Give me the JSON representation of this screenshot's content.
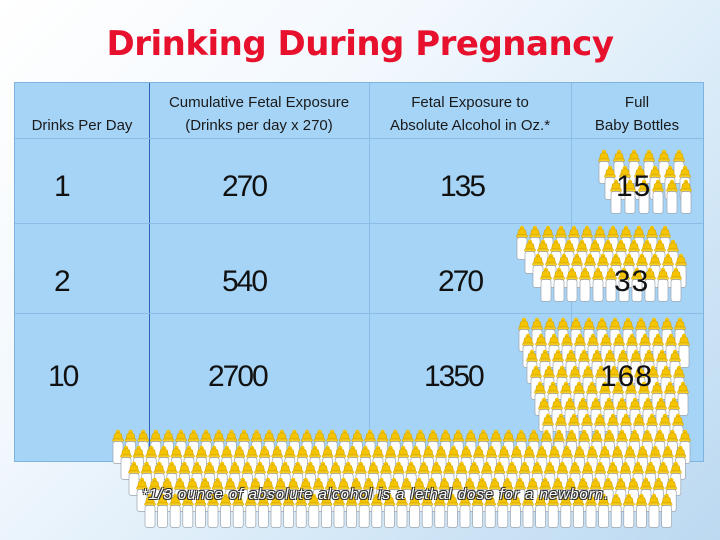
{
  "slide": {
    "title": "Drinking During Pregnancy"
  },
  "table": {
    "headers": [
      {
        "line1": "",
        "line2": "Drinks Per Day"
      },
      {
        "line1": "Cumulative Fetal Exposure",
        "line2": "(Drinks per day x 270)"
      },
      {
        "line1": "Fetal Exposure to",
        "line2": "Absolute Alcohol in Oz.*"
      },
      {
        "line1": "Full",
        "line2": "Baby Bottles"
      }
    ],
    "rows": [
      {
        "drinks": "1",
        "exposure": "270",
        "ounces": "135",
        "bottles": "15"
      },
      {
        "drinks": "2",
        "exposure": "540",
        "ounces": "270",
        "bottles": "33"
      },
      {
        "drinks": "10",
        "exposure": "2700",
        "ounces": "1350",
        "bottles": "168"
      }
    ]
  },
  "footnote": "*1/3 ounce of absolute alcohol is a lethal dose for a newborn.",
  "colors": {
    "title": "#e8112d",
    "table_bg": "#a6d4f7",
    "bottle_cap": "#f5c400",
    "bottle_body": "#ffffff"
  },
  "icons": [
    "baby-bottle-icon"
  ]
}
